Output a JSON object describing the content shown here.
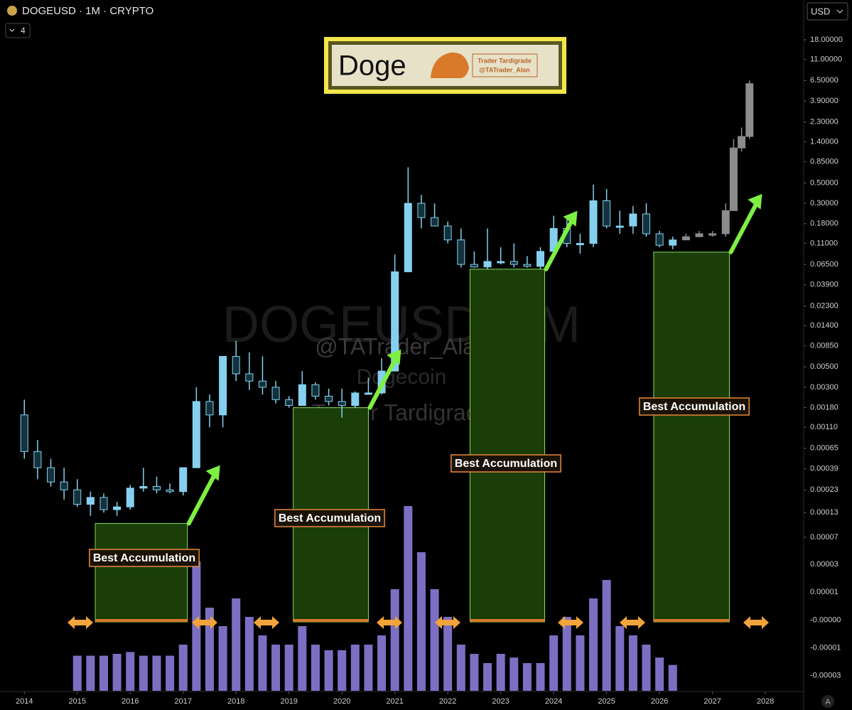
{
  "header": {
    "symbol": "DOGEUSD · 1M · CRYPTO",
    "indicators": 4,
    "currency": "USD",
    "scale_button": "A"
  },
  "logo": {
    "title": "Doge",
    "lines": [
      "Trader Tardigrade",
      "@TATrader_Alan"
    ]
  },
  "watermark": [
    "DOGEUSD, 1M",
    "@TATrader_Alan",
    "Dogecoin",
    "Trader Tardigrade"
  ],
  "chart_data": {
    "type": "candlestick",
    "log": true,
    "xlim": [
      2013.54,
      2028.71
    ],
    "xticks": [
      2014,
      2015,
      2016,
      2017,
      2018,
      2019,
      2020,
      2021,
      2022,
      2023,
      2024,
      2025,
      2026,
      2027,
      2028
    ],
    "ylim": [
      1.5e-06,
      28.6
    ],
    "yticks": [
      {
        "value": 18,
        "label": "18.00000"
      },
      {
        "value": 11,
        "label": "11.00000"
      },
      {
        "value": 6.5,
        "label": "6.50000"
      },
      {
        "value": 3.9,
        "label": "3.90000"
      },
      {
        "value": 2.3,
        "label": "2.30000"
      },
      {
        "value": 1.4,
        "label": "1.40000"
      },
      {
        "value": 0.85,
        "label": "0.85000"
      },
      {
        "value": 0.5,
        "label": "0.50000"
      },
      {
        "value": 0.3,
        "label": "0.30000"
      },
      {
        "value": 0.18,
        "label": "0.18000"
      },
      {
        "value": 0.11,
        "label": "0.11000"
      },
      {
        "value": 0.065,
        "label": "0.06500"
      },
      {
        "value": 0.039,
        "label": "0.03900"
      },
      {
        "value": 0.023,
        "label": "0.02300"
      },
      {
        "value": 0.014,
        "label": "0.01400"
      },
      {
        "value": 0.0085,
        "label": "0.00850"
      },
      {
        "value": 0.005,
        "label": "0.00500"
      },
      {
        "value": 0.003,
        "label": "0.00300"
      },
      {
        "value": 0.0018,
        "label": "0.00180"
      },
      {
        "value": 0.0011,
        "label": "0.00110"
      },
      {
        "value": 0.00065,
        "label": "0.00065"
      },
      {
        "value": 0.00039,
        "label": "0.00039"
      },
      {
        "value": 0.00023,
        "label": "0.00023"
      },
      {
        "value": 0.00013,
        "label": "0.00013"
      },
      {
        "value": 7e-05,
        "label": "0.00007"
      }
    ],
    "y2ticks": [
      {
        "value": 3e-05,
        "label": "0.00003"
      },
      {
        "value": 1e-05,
        "label": "0.00001"
      },
      {
        "value": 0,
        "label": "-0.00000"
      },
      {
        "value": -1e-05,
        "label": "-0.00001"
      },
      {
        "value": -3e-05,
        "label": "-0.00003"
      }
    ],
    "candles": {
      "color": "#86d0ef",
      "volume_color": "#8a7bd8",
      "volume_ylim": [
        0,
        100
      ],
      "x": [
        2014.0,
        2014.25,
        2014.5,
        2014.75,
        2015.0,
        2015.25,
        2015.5,
        2015.75,
        2016.0,
        2016.25,
        2016.5,
        2016.75,
        2017.0,
        2017.25,
        2017.5,
        2017.75,
        2018.0,
        2018.25,
        2018.5,
        2018.75,
        2019.0,
        2019.25,
        2019.5,
        2019.75,
        2020.0,
        2020.25,
        2020.5,
        2020.75,
        2021.0,
        2021.25,
        2021.5,
        2021.75,
        2022.0,
        2022.25,
        2022.5,
        2022.75,
        2023.0,
        2023.25,
        2023.5,
        2023.75,
        2024.0,
        2024.25,
        2024.5,
        2024.75,
        2025.0,
        2025.25,
        2025.5,
        2025.75,
        2026.0,
        2026.25
      ],
      "open": [
        0.0015,
        0.0006,
        0.0004,
        0.00028,
        0.00023,
        0.00016,
        0.00019,
        0.00014,
        0.00015,
        0.00024,
        0.00025,
        0.00023,
        0.00022,
        0.0004,
        0.0021,
        0.0015,
        0.0065,
        0.0042,
        0.0035,
        0.003,
        0.0022,
        0.0019,
        0.0032,
        0.0024,
        0.0021,
        0.0019,
        0.0026,
        0.0026,
        0.0045,
        0.054,
        0.3,
        0.21,
        0.17,
        0.12,
        0.065,
        0.061,
        0.07,
        0.07,
        0.065,
        0.062,
        0.09,
        0.16,
        0.11,
        0.11,
        0.32,
        0.17,
        0.17,
        0.23,
        0.14,
        0.105
      ],
      "high": [
        0.0022,
        0.0008,
        0.0005,
        0.0004,
        0.0003,
        0.00022,
        0.00021,
        0.00017,
        0.00026,
        0.0004,
        0.00032,
        0.00027,
        0.0004,
        0.003,
        0.0025,
        0.0065,
        0.0096,
        0.0072,
        0.0065,
        0.0035,
        0.0024,
        0.0045,
        0.0034,
        0.0029,
        0.0029,
        0.0027,
        0.0038,
        0.0062,
        0.083,
        0.74,
        0.37,
        0.3,
        0.19,
        0.16,
        0.09,
        0.16,
        0.1,
        0.11,
        0.08,
        0.1,
        0.22,
        0.2,
        0.14,
        0.48,
        0.43,
        0.25,
        0.28,
        0.3,
        0.15,
        0.13
      ],
      "low": [
        0.0005,
        0.0003,
        0.00025,
        0.00018,
        0.00015,
        0.00012,
        0.00013,
        0.00012,
        0.00014,
        0.00022,
        0.00021,
        0.00021,
        0.0002,
        0.0004,
        0.0011,
        0.0011,
        0.0035,
        0.0028,
        0.0025,
        0.002,
        0.0018,
        0.0019,
        0.0022,
        0.0019,
        0.0014,
        0.0018,
        0.0025,
        0.0025,
        0.0045,
        0.054,
        0.16,
        0.17,
        0.11,
        0.06,
        0.06,
        0.058,
        0.065,
        0.06,
        0.06,
        0.058,
        0.08,
        0.1,
        0.085,
        0.1,
        0.16,
        0.14,
        0.14,
        0.13,
        0.1,
        0.095
      ],
      "close": [
        0.0006,
        0.0004,
        0.00028,
        0.00023,
        0.00016,
        0.00019,
        0.00014,
        0.00015,
        0.00024,
        0.00025,
        0.00023,
        0.00022,
        0.0004,
        0.0021,
        0.0015,
        0.0065,
        0.0042,
        0.0035,
        0.003,
        0.0022,
        0.0019,
        0.0032,
        0.0024,
        0.0021,
        0.0019,
        0.0026,
        0.0026,
        0.0045,
        0.054,
        0.3,
        0.21,
        0.17,
        0.12,
        0.065,
        0.061,
        0.07,
        0.07,
        0.065,
        0.062,
        0.09,
        0.16,
        0.11,
        0.11,
        0.32,
        0.17,
        0.17,
        0.23,
        0.14,
        0.105,
        0.12
      ],
      "volume": [
        null,
        null,
        null,
        null,
        19,
        19,
        19,
        20,
        21,
        19,
        19,
        19,
        25,
        70,
        45,
        35,
        50,
        40,
        30,
        25,
        25,
        35,
        25,
        22,
        22,
        25,
        25,
        30,
        55,
        100,
        75,
        55,
        40,
        25,
        20,
        15,
        20,
        18,
        15,
        15,
        30,
        40,
        30,
        50,
        60,
        35,
        30,
        25,
        18,
        14
      ]
    },
    "projection": {
      "color": "#8c8c8c",
      "x": [
        2026.5,
        2026.75,
        2027.0,
        2027.25,
        2027.4,
        2027.55,
        2027.7
      ],
      "open": [
        0.12,
        0.13,
        0.14,
        0.14,
        0.25,
        1.2,
        1.6
      ],
      "high": [
        0.14,
        0.15,
        0.15,
        0.3,
        1.5,
        2.0,
        6.5
      ],
      "low": [
        0.12,
        0.13,
        0.13,
        0.13,
        0.25,
        1.1,
        1.5
      ],
      "close": [
        0.13,
        0.14,
        0.14,
        0.25,
        1.2,
        1.6,
        6.0
      ]
    },
    "zones": [
      {
        "label": "Best Accumulation",
        "x_start": 2015.34,
        "x_end": 2017.08,
        "top": 9.9e-05,
        "color": "#1b3d08"
      },
      {
        "label": "Best Accumulation",
        "x_start": 2019.08,
        "x_end": 2020.5,
        "top": 0.0018,
        "color": "#1b3d08"
      },
      {
        "label": "Best Accumulation",
        "x_start": 2022.42,
        "x_end": 2023.83,
        "top": 0.0577,
        "color": "#1b3d08"
      },
      {
        "label": "Best Accumulation",
        "x_start": 2025.89,
        "x_end": 2027.32,
        "top": 0.0884,
        "color": "#1b3d08"
      }
    ]
  }
}
